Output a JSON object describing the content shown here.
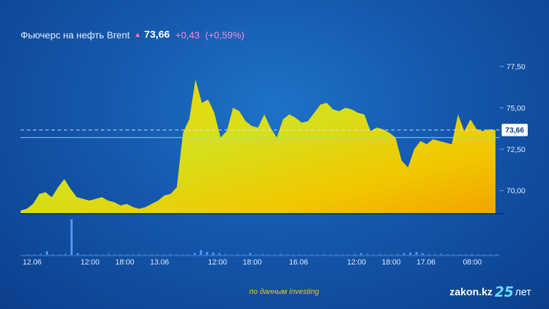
{
  "header": {
    "title": "Фьючерс на нефть Brent",
    "price": "73,66",
    "change": "+0,43",
    "change_pct": "(+0,59%)"
  },
  "footer": {
    "source": "по данным investing",
    "logo_text": "zakon.kz",
    "logo_number": "25",
    "logo_suffix": "лет"
  },
  "colors": {
    "fill_top": "#f4d400",
    "fill_mid": "#d7df1a",
    "fill_bottom": "#f0a800",
    "volume": "#3b8dff",
    "current_line": "#8fd0ff",
    "arrow": "#ff6fa8"
  },
  "icons": {
    "direction": "up-arrow-icon"
  },
  "chart_data": {
    "type": "area",
    "title": "Фьючерс на нефть Brent",
    "ylim": [
      68.6,
      78.2
    ],
    "yticks": [
      70.0,
      72.5,
      75.0,
      77.5
    ],
    "ytick_labels": [
      "70,00",
      "72,50",
      "75,00",
      "77,50"
    ],
    "current_value": 73.66,
    "current_label": "73,66",
    "xtick_labels": [
      "12.06",
      "12:00",
      "18:00",
      "13.06",
      "12:00",
      "18:00",
      "16.06",
      "12:00",
      "18:00",
      "17.06",
      "08:00"
    ],
    "xtick_index": [
      2,
      12,
      18,
      24,
      34,
      40,
      48,
      58,
      64,
      70,
      78
    ],
    "x_count": 83,
    "price": [
      68.8,
      68.9,
      69.2,
      69.8,
      69.9,
      69.6,
      70.2,
      70.7,
      70.1,
      69.6,
      69.5,
      69.4,
      69.5,
      69.6,
      69.4,
      69.3,
      69.1,
      69.2,
      69.0,
      68.9,
      69.0,
      69.2,
      69.4,
      69.7,
      69.8,
      70.2,
      73.5,
      74.3,
      76.7,
      75.3,
      75.5,
      74.7,
      73.2,
      73.6,
      75.0,
      74.8,
      74.2,
      73.9,
      73.8,
      74.6,
      73.8,
      73.2,
      74.3,
      74.6,
      74.4,
      74.1,
      74.2,
      74.7,
      75.2,
      75.3,
      74.9,
      74.8,
      75.0,
      74.9,
      74.7,
      74.6,
      73.6,
      73.8,
      73.7,
      73.5,
      73.2,
      71.8,
      71.4,
      72.5,
      73.0,
      72.8,
      73.1,
      73.0,
      72.9,
      72.8,
      74.6,
      73.6,
      74.3,
      73.7,
      73.6,
      73.7,
      73.66
    ],
    "volume": [
      1,
      0,
      2,
      6,
      1,
      0,
      2,
      60,
      3,
      1,
      0,
      1,
      0,
      2,
      1,
      0,
      1,
      1,
      2,
      0,
      1,
      1,
      0,
      2,
      1,
      0,
      1,
      3,
      8,
      5,
      4,
      3,
      2,
      1,
      2,
      1,
      3,
      1,
      2,
      1,
      1,
      2,
      0,
      1,
      2,
      1,
      1,
      0,
      2,
      1,
      1,
      0,
      1,
      2,
      3,
      2,
      1,
      2,
      1,
      1,
      2,
      3,
      4,
      5,
      3,
      2,
      1,
      2,
      1,
      1,
      0,
      1,
      2,
      1,
      1,
      0,
      1
    ]
  }
}
